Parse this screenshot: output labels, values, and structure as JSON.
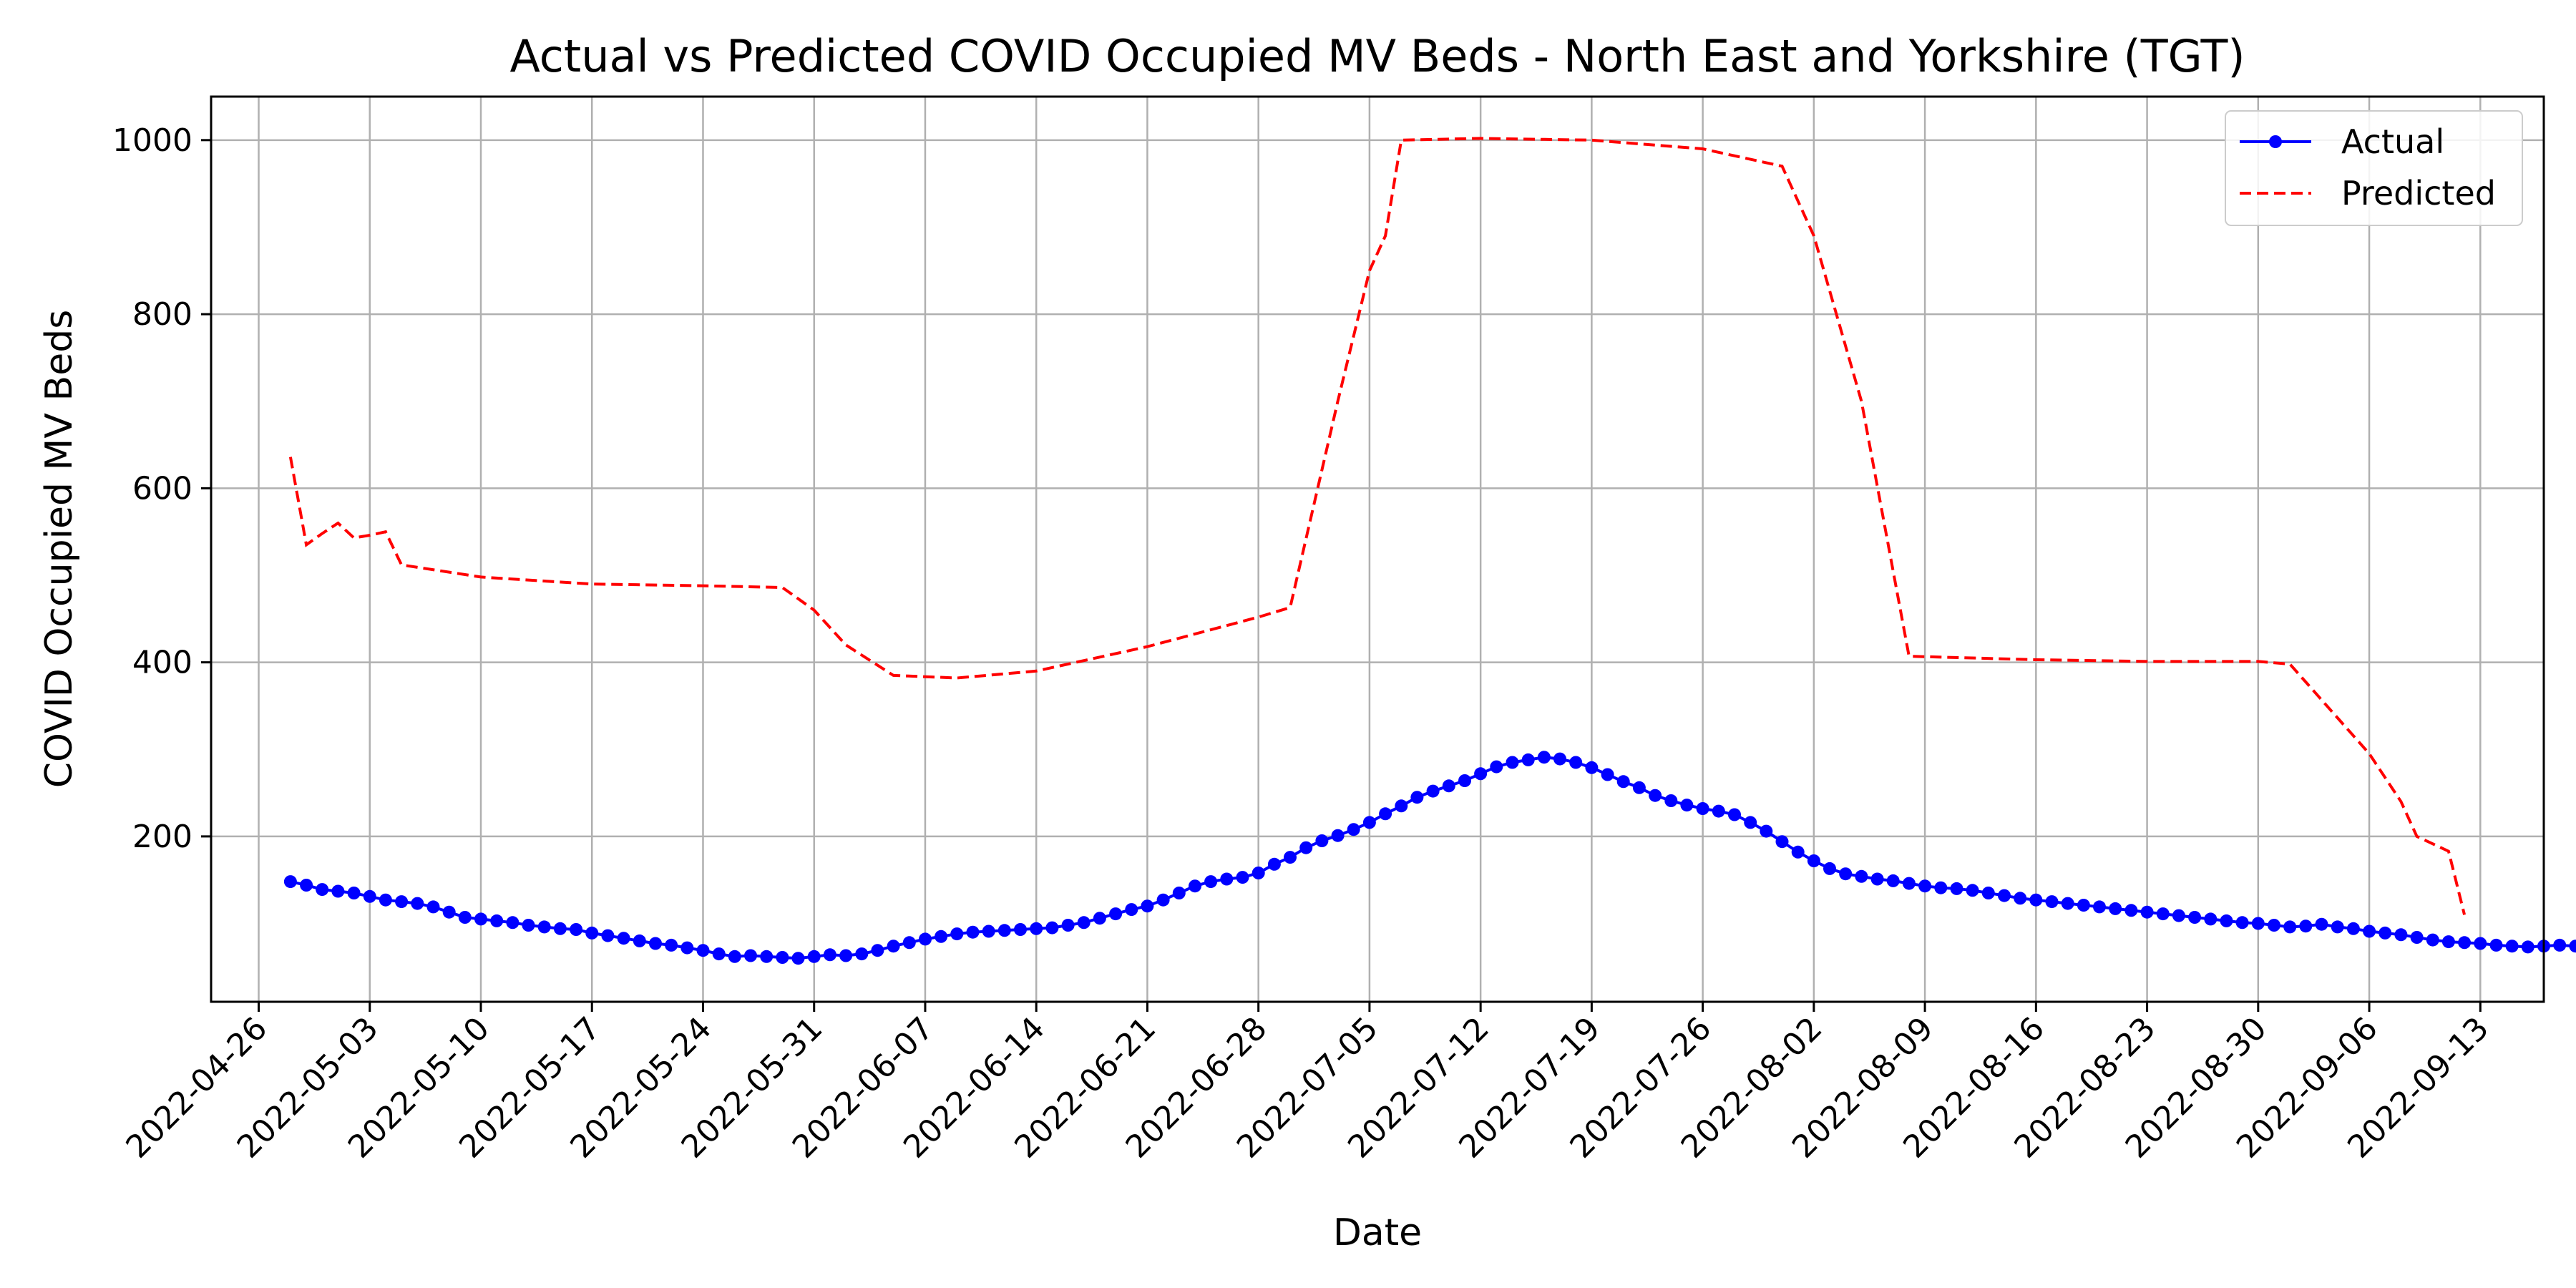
{
  "chart_data": {
    "type": "line",
    "title": "Actual vs Predicted COVID Occupied MV Beds - North East and Yorkshire (TGT)",
    "xlabel": "Date",
    "ylabel": "COVID Occupied MV Beds",
    "xlim": [
      "2022-04-23",
      "2022-09-17"
    ],
    "ylim": [
      10,
      1050
    ],
    "x_ticks": [
      "2022-04-26",
      "2022-05-03",
      "2022-05-10",
      "2022-05-17",
      "2022-05-24",
      "2022-05-31",
      "2022-06-07",
      "2022-06-14",
      "2022-06-21",
      "2022-06-28",
      "2022-07-05",
      "2022-07-12",
      "2022-07-19",
      "2022-07-26",
      "2022-08-02",
      "2022-08-09",
      "2022-08-16",
      "2022-08-23",
      "2022-08-30",
      "2022-09-06",
      "2022-09-13"
    ],
    "y_ticks": [
      200,
      400,
      600,
      800,
      1000
    ],
    "grid": true,
    "legend": "top-right",
    "series": [
      {
        "name": "Actual",
        "color": "#0000ff",
        "style": "solid-markers",
        "x_start": "2022-04-28",
        "values": [
          148,
          144,
          139,
          137,
          135,
          131,
          127,
          125,
          123,
          119,
          113,
          107,
          105,
          103,
          101,
          98,
          96,
          94,
          93,
          89,
          86,
          83,
          80,
          77,
          75,
          72,
          69,
          65,
          62,
          63,
          62,
          61,
          60,
          62,
          64,
          63,
          65,
          69,
          74,
          78,
          82,
          85,
          88,
          90,
          91,
          92,
          93,
          94,
          95,
          98,
          101,
          106,
          111,
          116,
          120,
          127,
          135,
          143,
          148,
          151,
          153,
          158,
          168,
          176,
          187,
          195,
          201,
          208,
          216,
          226,
          235,
          245,
          252,
          258,
          264,
          272,
          280,
          285,
          288,
          291,
          289,
          285,
          279,
          271,
          263,
          256,
          247,
          241,
          236,
          232,
          229,
          225,
          216,
          206,
          194,
          182,
          172,
          163,
          157,
          154,
          151,
          149,
          146,
          143,
          141,
          140,
          138,
          135,
          132,
          129,
          127,
          125,
          123,
          121,
          119,
          117,
          115,
          113,
          111,
          109,
          107,
          105,
          103,
          101,
          100,
          98,
          96,
          97,
          99,
          96,
          94,
          91,
          89,
          87,
          84,
          81,
          79,
          78,
          77,
          75,
          74,
          73,
          74,
          75,
          74,
          73,
          72,
          74,
          76
        ]
      },
      {
        "name": "Predicted",
        "color": "#ff0000",
        "style": "dashed",
        "points": [
          [
            "2022-04-28",
            636
          ],
          [
            "2022-04-29",
            535
          ],
          [
            "2022-04-30",
            548
          ],
          [
            "2022-05-01",
            560
          ],
          [
            "2022-05-02",
            543
          ],
          [
            "2022-05-03",
            546
          ],
          [
            "2022-05-04",
            550
          ],
          [
            "2022-05-05",
            512
          ],
          [
            "2022-05-10",
            498
          ],
          [
            "2022-05-17",
            490
          ],
          [
            "2022-05-24",
            488
          ],
          [
            "2022-05-29",
            486
          ],
          [
            "2022-05-31",
            460
          ],
          [
            "2022-06-02",
            420
          ],
          [
            "2022-06-05",
            385
          ],
          [
            "2022-06-09",
            382
          ],
          [
            "2022-06-14",
            390
          ],
          [
            "2022-06-21",
            418
          ],
          [
            "2022-06-28",
            452
          ],
          [
            "2022-06-30",
            463
          ],
          [
            "2022-07-03",
            700
          ],
          [
            "2022-07-05",
            850
          ],
          [
            "2022-07-06",
            890
          ],
          [
            "2022-07-07",
            1000
          ],
          [
            "2022-07-12",
            1002
          ],
          [
            "2022-07-19",
            1000
          ],
          [
            "2022-07-26",
            990
          ],
          [
            "2022-07-31",
            970
          ],
          [
            "2022-08-02",
            890
          ],
          [
            "2022-08-05",
            700
          ],
          [
            "2022-08-08",
            407
          ],
          [
            "2022-08-16",
            403
          ],
          [
            "2022-08-23",
            401
          ],
          [
            "2022-08-30",
            401
          ],
          [
            "2022-09-01",
            398
          ],
          [
            "2022-09-06",
            295
          ],
          [
            "2022-09-08",
            240
          ],
          [
            "2022-09-09",
            200
          ],
          [
            "2022-09-11",
            183
          ],
          [
            "2022-09-12",
            110
          ]
        ]
      }
    ]
  }
}
